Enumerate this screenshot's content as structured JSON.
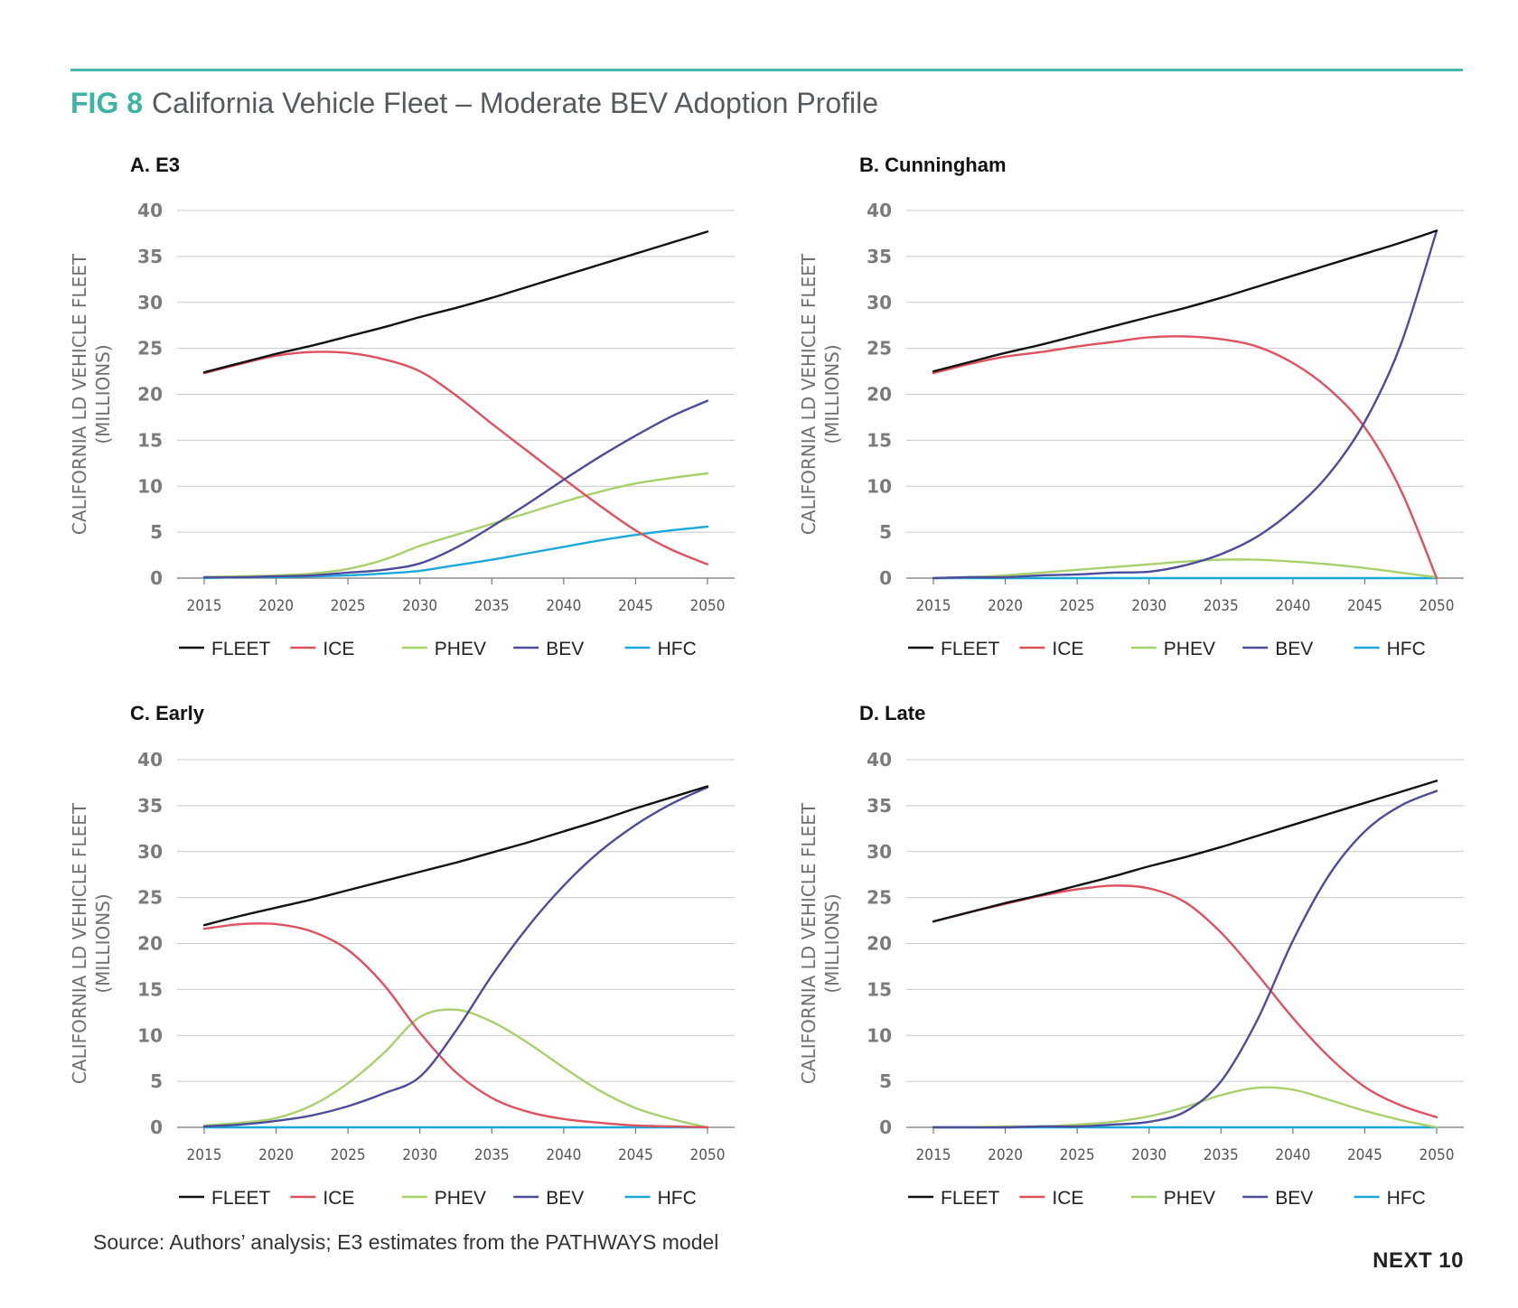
{
  "figure": {
    "label": "FIG 8",
    "title": "California Vehicle Fleet – Moderate BEV Adoption Profile",
    "source": "Source: Authors’ analysis; E3 estimates from the PATHWAYS model",
    "brand": "NEXT 10"
  },
  "colors": {
    "FLEET": "#111111",
    "ICE": "#e0505f",
    "PHEV": "#a8d06b",
    "BEV": "#4c4c9a",
    "HFC": "#1aa8dd",
    "rule": "#4bb8a9",
    "figlabel": "#3fb3a3"
  },
  "chart_data": [
    {
      "type": "line",
      "title": "A. E3",
      "ylabel": [
        "CALIFORNIA LD VEHICLE FLEET",
        "(MILLIONS)"
      ],
      "xlabel": "",
      "ylim": [
        0,
        40
      ],
      "yticks": [
        0,
        5,
        10,
        15,
        20,
        25,
        30,
        35,
        40
      ],
      "xticks": [
        "2015",
        "2020",
        "2025",
        "2030",
        "2035",
        "2040",
        "2045",
        "2050"
      ],
      "x": [
        2015,
        2017.5,
        2020,
        2022.5,
        2025,
        2027.5,
        2030,
        2032.5,
        2035,
        2037.5,
        2040,
        2042.5,
        2045,
        2047.5,
        2050
      ],
      "grid": true,
      "legend": "bottom",
      "series": [
        {
          "name": "FLEET",
          "values": [
            22.4,
            23.4,
            24.4,
            25.3,
            26.3,
            27.3,
            28.4,
            29.4,
            30.5,
            31.7,
            32.9,
            34.1,
            35.3,
            36.5,
            37.7
          ]
        },
        {
          "name": "ICE",
          "values": [
            22.3,
            23.3,
            24.2,
            24.6,
            24.5,
            23.8,
            22.5,
            19.9,
            16.8,
            13.8,
            10.8,
            7.9,
            5.2,
            3.1,
            1.5
          ]
        },
        {
          "name": "PHEV",
          "values": [
            0.1,
            0.2,
            0.3,
            0.5,
            1.0,
            2.0,
            3.5,
            4.7,
            5.9,
            7.1,
            8.3,
            9.4,
            10.3,
            10.9,
            11.4
          ]
        },
        {
          "name": "BEV",
          "values": [
            0.1,
            0.1,
            0.2,
            0.3,
            0.6,
            0.9,
            1.6,
            3.3,
            5.6,
            8.1,
            10.7,
            13.2,
            15.5,
            17.6,
            19.3
          ]
        },
        {
          "name": "HFC",
          "values": [
            0.0,
            0.1,
            0.1,
            0.2,
            0.3,
            0.5,
            0.8,
            1.4,
            2.0,
            2.7,
            3.4,
            4.1,
            4.7,
            5.2,
            5.6
          ]
        }
      ]
    },
    {
      "type": "line",
      "title": "B. Cunningham",
      "ylabel": [
        "CALIFORNIA LD VEHICLE FLEET",
        "(MILLIONS)"
      ],
      "xlabel": "",
      "ylim": [
        0,
        40
      ],
      "yticks": [
        0,
        5,
        10,
        15,
        20,
        25,
        30,
        35,
        40
      ],
      "xticks": [
        "2015",
        "2020",
        "2025",
        "2030",
        "2035",
        "2040",
        "2045",
        "2050"
      ],
      "x": [
        2015,
        2017.5,
        2020,
        2022.5,
        2025,
        2027.5,
        2030,
        2032.5,
        2035,
        2037.5,
        2040,
        2042.5,
        2045,
        2047.5,
        2050
      ],
      "grid": true,
      "legend": "bottom",
      "series": [
        {
          "name": "FLEET",
          "values": [
            22.5,
            23.5,
            24.5,
            25.4,
            26.4,
            27.4,
            28.4,
            29.4,
            30.5,
            31.7,
            32.9,
            34.1,
            35.3,
            36.5,
            37.8
          ]
        },
        {
          "name": "ICE",
          "values": [
            22.3,
            23.3,
            24.1,
            24.6,
            25.2,
            25.7,
            26.2,
            26.3,
            26.0,
            25.2,
            23.4,
            20.6,
            16.4,
            9.6,
            0.0
          ]
        },
        {
          "name": "PHEV",
          "values": [
            0.0,
            0.1,
            0.3,
            0.6,
            0.9,
            1.2,
            1.5,
            1.8,
            2.0,
            2.0,
            1.8,
            1.5,
            1.1,
            0.6,
            0.1
          ]
        },
        {
          "name": "BEV",
          "values": [
            0.0,
            0.1,
            0.1,
            0.3,
            0.4,
            0.6,
            0.7,
            1.4,
            2.6,
            4.5,
            7.4,
            11.3,
            17.0,
            25.4,
            37.8
          ]
        },
        {
          "name": "HFC",
          "values": [
            0,
            0,
            0,
            0,
            0,
            0,
            0,
            0,
            0,
            0,
            0,
            0,
            0,
            0,
            0
          ]
        }
      ]
    },
    {
      "type": "line",
      "title": "C. Early",
      "ylabel": [
        "CALIFORNIA LD VEHICLE FLEET",
        "(MILLIONS)"
      ],
      "xlabel": "",
      "ylim": [
        0,
        40
      ],
      "yticks": [
        0,
        5,
        10,
        15,
        20,
        25,
        30,
        35,
        40
      ],
      "xticks": [
        "2015",
        "2020",
        "2025",
        "2030",
        "2035",
        "2040",
        "2045",
        "2050"
      ],
      "x": [
        2015,
        2017.5,
        2020,
        2022.5,
        2025,
        2027.5,
        2030,
        2032.5,
        2035,
        2037.5,
        2040,
        2042.5,
        2045,
        2047.5,
        2050
      ],
      "grid": true,
      "legend": "bottom",
      "series": [
        {
          "name": "FLEET",
          "values": [
            22.0,
            23.0,
            23.9,
            24.8,
            25.8,
            26.8,
            27.8,
            28.8,
            29.9,
            31.0,
            32.2,
            33.4,
            34.7,
            35.9,
            37.1
          ]
        },
        {
          "name": "ICE",
          "values": [
            21.6,
            22.1,
            22.1,
            21.3,
            19.3,
            15.5,
            10.3,
            6.0,
            3.2,
            1.7,
            0.9,
            0.5,
            0.2,
            0.1,
            0.0
          ]
        },
        {
          "name": "PHEV",
          "values": [
            0.2,
            0.5,
            1.0,
            2.4,
            4.8,
            8.1,
            12.0,
            12.8,
            11.5,
            9.2,
            6.5,
            4.0,
            2.1,
            0.9,
            0.0
          ]
        },
        {
          "name": "BEV",
          "values": [
            0.1,
            0.3,
            0.7,
            1.3,
            2.3,
            3.7,
            5.5,
            10.5,
            16.5,
            21.8,
            26.3,
            30.0,
            32.9,
            35.2,
            37.0
          ]
        },
        {
          "name": "HFC",
          "values": [
            0,
            0,
            0,
            0,
            0,
            0,
            0,
            0,
            0,
            0,
            0,
            0,
            0,
            0,
            0
          ]
        }
      ]
    },
    {
      "type": "line",
      "title": "D. Late",
      "ylabel": [
        "CALIFORNIA LD VEHICLE FLEET",
        "(MILLIONS)"
      ],
      "xlabel": "",
      "ylim": [
        0,
        40
      ],
      "yticks": [
        0,
        5,
        10,
        15,
        20,
        25,
        30,
        35,
        40
      ],
      "xticks": [
        "2015",
        "2020",
        "2025",
        "2030",
        "2035",
        "2040",
        "2045",
        "2050"
      ],
      "x": [
        2015,
        2017.5,
        2020,
        2022.5,
        2025,
        2027.5,
        2030,
        2032.5,
        2035,
        2037.5,
        2040,
        2042.5,
        2045,
        2047.5,
        2050
      ],
      "grid": true,
      "legend": "bottom",
      "series": [
        {
          "name": "FLEET",
          "values": [
            22.4,
            23.4,
            24.4,
            25.3,
            26.3,
            27.3,
            28.4,
            29.4,
            30.5,
            31.7,
            32.9,
            34.1,
            35.3,
            36.5,
            37.7
          ]
        },
        {
          "name": "ICE",
          "values": [
            22.4,
            23.4,
            24.3,
            25.2,
            25.9,
            26.3,
            26.0,
            24.5,
            21.2,
            16.7,
            11.9,
            7.7,
            4.4,
            2.4,
            1.1
          ]
        },
        {
          "name": "PHEV",
          "values": [
            0.0,
            0.0,
            0.1,
            0.1,
            0.3,
            0.6,
            1.2,
            2.2,
            3.5,
            4.3,
            4.1,
            3.0,
            1.8,
            0.8,
            0.0
          ]
        },
        {
          "name": "BEV",
          "values": [
            0.0,
            0.0,
            0.0,
            0.1,
            0.1,
            0.3,
            0.6,
            1.7,
            5.0,
            11.6,
            20.3,
            27.4,
            32.2,
            35.0,
            36.6
          ]
        },
        {
          "name": "HFC",
          "values": [
            0,
            0,
            0,
            0,
            0,
            0,
            0,
            0,
            0,
            0,
            0,
            0,
            0,
            0,
            0
          ]
        }
      ]
    }
  ]
}
